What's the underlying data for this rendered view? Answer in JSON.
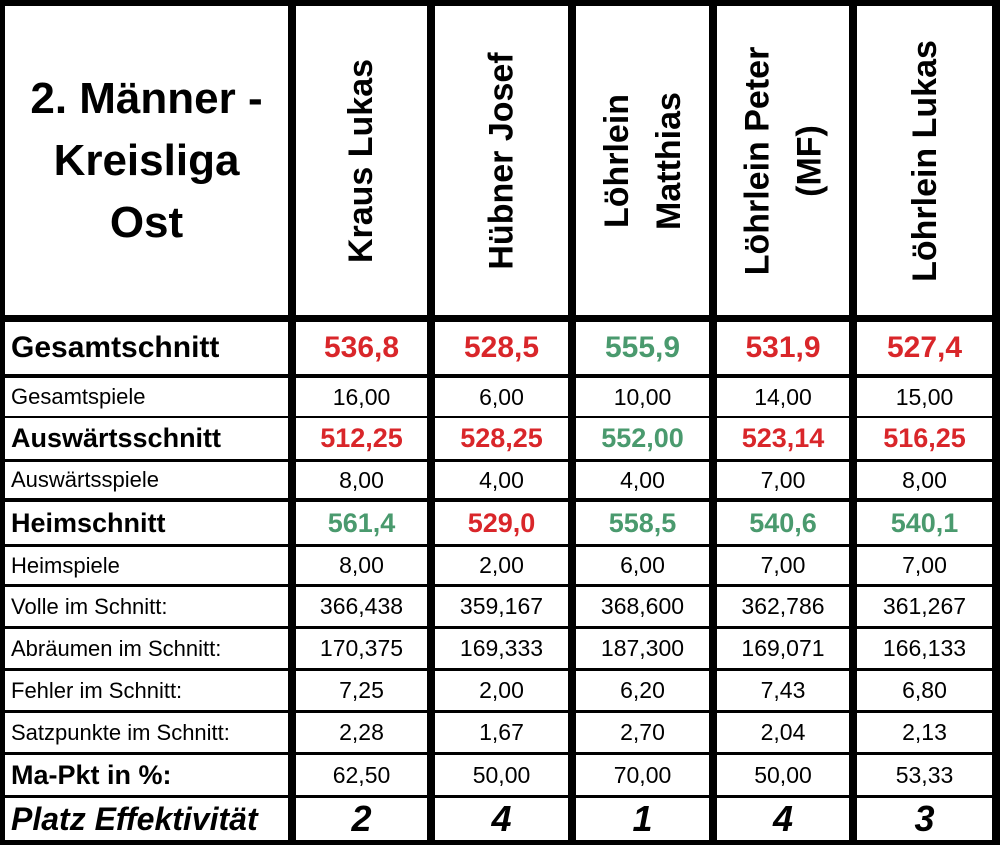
{
  "title_lines": [
    "2. Männer -",
    "Kreisliga",
    "Ost"
  ],
  "players": [
    {
      "name_lines": [
        "Kraus Lukas"
      ]
    },
    {
      "name_lines": [
        "Hübner Josef"
      ]
    },
    {
      "name_lines": [
        "Löhrlein",
        "Matthias"
      ]
    },
    {
      "name_lines": [
        "Löhrlein Peter",
        "(MF)"
      ]
    },
    {
      "name_lines": [
        "Löhrlein Lukas"
      ]
    }
  ],
  "colors": {
    "good": "#4a9a6e",
    "bad": "#d9262a",
    "normal": "#000000"
  },
  "rows": [
    {
      "label": "Gesamtschnitt",
      "style": "big",
      "values": [
        "536,8",
        "528,5",
        "555,9",
        "531,9",
        "527,4"
      ],
      "status": [
        "bad",
        "bad",
        "good",
        "bad",
        "bad"
      ]
    },
    {
      "label": "Gesamtspiele",
      "style": "small",
      "values": [
        "16,00",
        "6,00",
        "10,00",
        "14,00",
        "15,00"
      ]
    },
    {
      "label": "Auswärtsschnitt",
      "style": "mid",
      "values": [
        "512,25",
        "528,25",
        "552,00",
        "523,14",
        "516,25"
      ],
      "status": [
        "bad",
        "bad",
        "good",
        "bad",
        "bad"
      ]
    },
    {
      "label": "Auswärtsspiele",
      "style": "small",
      "values": [
        "8,00",
        "4,00",
        "4,00",
        "7,00",
        "8,00"
      ]
    },
    {
      "label": "Heimschnitt",
      "style": "mid",
      "values": [
        "561,4",
        "529,0",
        "558,5",
        "540,6",
        "540,1"
      ],
      "status": [
        "good",
        "bad",
        "good",
        "good",
        "good"
      ]
    },
    {
      "label": "Heimspiele",
      "style": "small",
      "values": [
        "8,00",
        "2,00",
        "6,00",
        "7,00",
        "7,00"
      ]
    },
    {
      "label": "Volle im Schnitt:",
      "style": "small",
      "values": [
        "366,438",
        "359,167",
        "368,600",
        "362,786",
        "361,267"
      ]
    },
    {
      "label": "Abräumen im Schnitt:",
      "style": "small",
      "values": [
        "170,375",
        "169,333",
        "187,300",
        "169,071",
        "166,133"
      ]
    },
    {
      "label": "Fehler im Schnitt:",
      "style": "small",
      "values": [
        "7,25",
        "2,00",
        "6,20",
        "7,43",
        "6,80"
      ]
    },
    {
      "label": "Satzpunkte im Schnitt:",
      "style": "small",
      "values": [
        "2,28",
        "1,67",
        "2,70",
        "2,04",
        "2,13"
      ]
    },
    {
      "label": "Ma-Pkt in %:",
      "style": "mid",
      "values": [
        "62,50",
        "50,00",
        "70,00",
        "50,00",
        "53,33"
      ],
      "valueStyle": "small"
    },
    {
      "label": "Platz Effektivität",
      "style": "platz",
      "values": [
        "2",
        "4",
        "1",
        "4",
        "3"
      ]
    }
  ]
}
